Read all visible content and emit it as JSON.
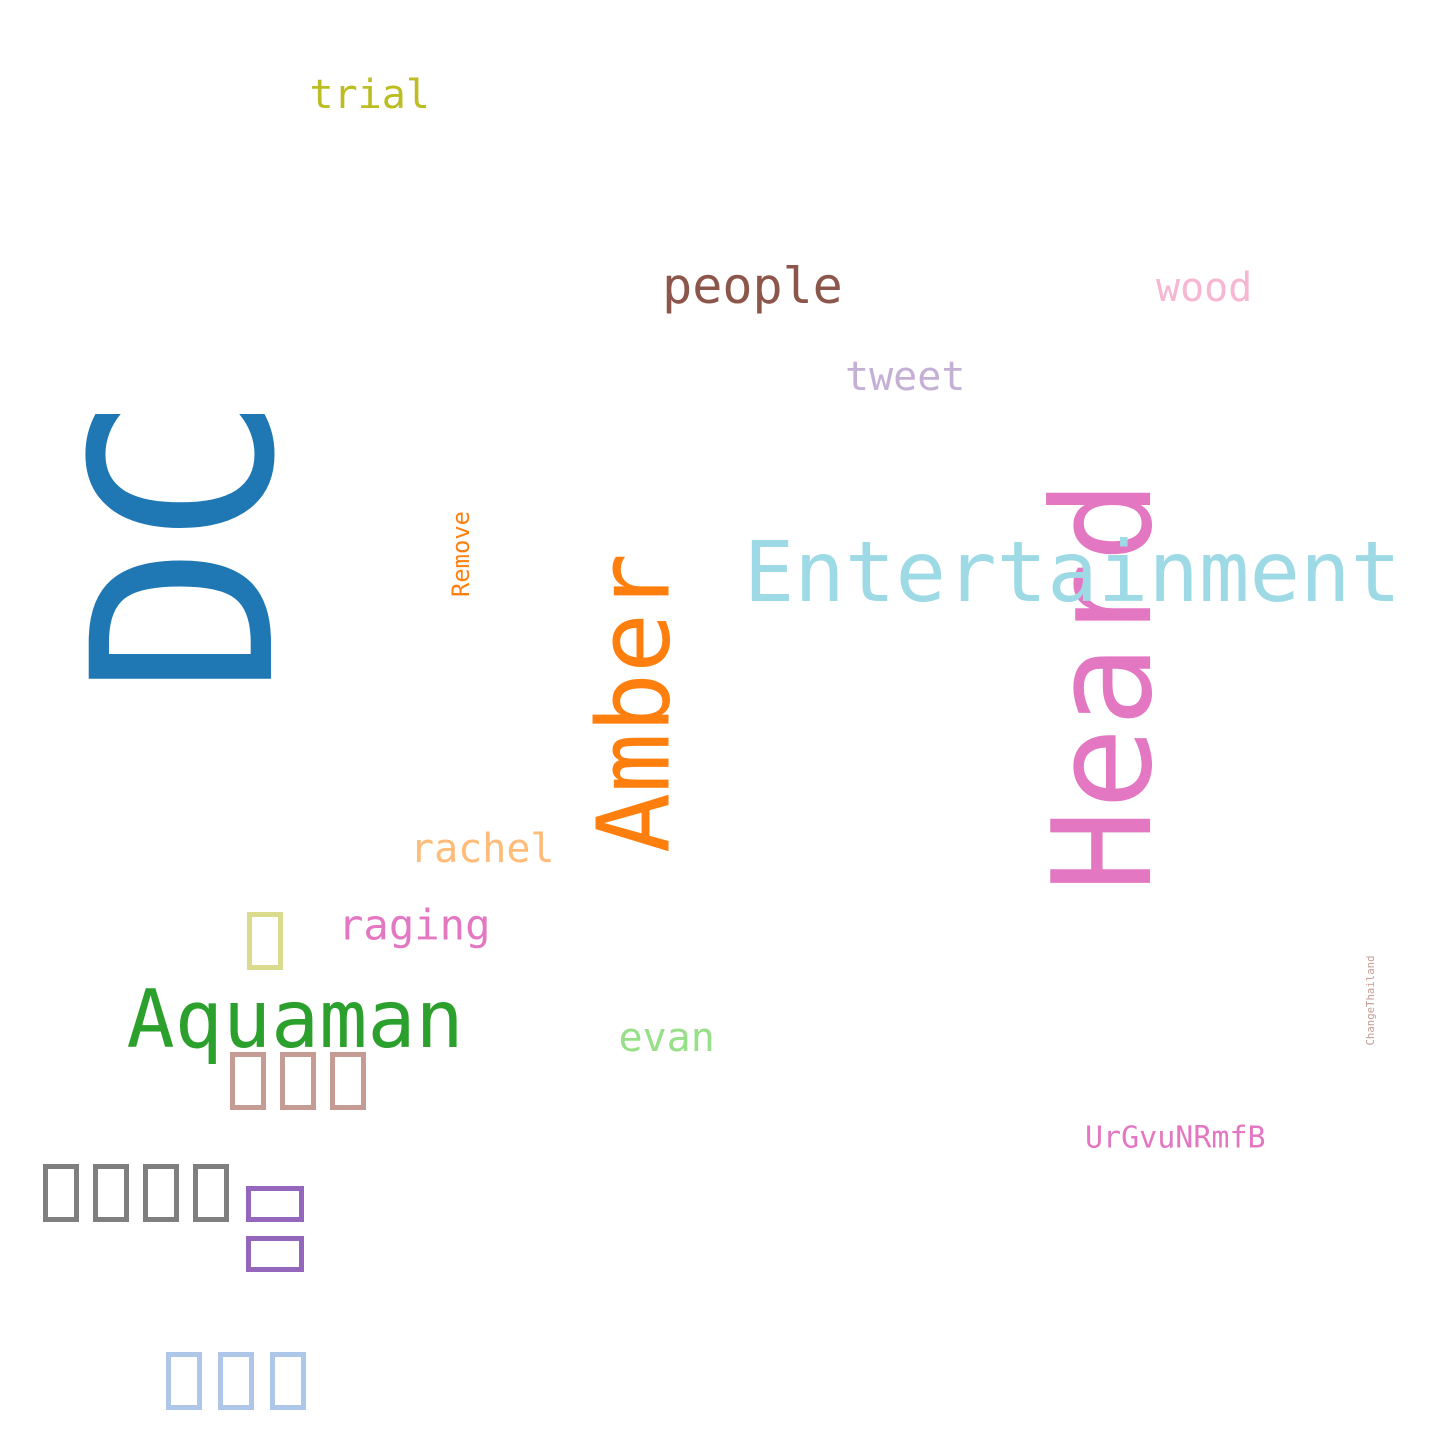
{
  "words": [
    {
      "id": "heard",
      "text": "Heard",
      "color": "#e377c2",
      "rotated": true
    },
    {
      "id": "amber",
      "text": "Amber",
      "color": "#ff7f0e",
      "rotated": true
    },
    {
      "id": "dc",
      "text": "DC",
      "color": "#1f77b4",
      "rotated": true
    },
    {
      "id": "entertainment",
      "text": "Entertainment",
      "color": "#9edae5",
      "rotated": false
    },
    {
      "id": "changethailand",
      "text": "ChangeThailand",
      "color": "#c49c94",
      "rotated": true
    },
    {
      "id": "remove",
      "text": "Remove",
      "color": "#ff7f0e",
      "rotated": true
    },
    {
      "id": "aquaman",
      "text": "Aquaman",
      "color": "#2ca02c",
      "rotated": false
    },
    {
      "id": "people",
      "text": "people",
      "color": "#8c564b",
      "rotated": false
    },
    {
      "id": "trial",
      "text": "trial",
      "color": "#bcbd22",
      "rotated": false
    },
    {
      "id": "wood",
      "text": "wood",
      "color": "#f7b6d2",
      "rotated": false
    },
    {
      "id": "tweet",
      "text": "tweet",
      "color": "#c5b0d5",
      "rotated": false
    },
    {
      "id": "rachel",
      "text": "rachel",
      "color": "#ffbb78",
      "rotated": false
    },
    {
      "id": "raging",
      "text": "raging",
      "color": "#e377c2",
      "rotated": false
    },
    {
      "id": "evan",
      "text": "evan",
      "color": "#98df8a",
      "rotated": false
    },
    {
      "id": "urgvunrmfb",
      "text": "UrGvuNRmfB",
      "color": "#e377c2",
      "rotated": false
    }
  ],
  "missing_glyph_words": [
    {
      "id": "glyph-1",
      "color": "#dbdb8d",
      "count": 1,
      "rotated": false
    },
    {
      "id": "glyph-3-brown",
      "color": "#c49c94",
      "count": 3,
      "rotated": false
    },
    {
      "id": "glyph-5",
      "color": "#7f7f7f",
      "count": 5,
      "rotated": false
    },
    {
      "id": "glyph-2",
      "color": "#9467bd",
      "count": 2,
      "rotated": true
    },
    {
      "id": "glyph-3-blue",
      "color": "#aec7e8",
      "count": 3,
      "rotated": false
    }
  ]
}
